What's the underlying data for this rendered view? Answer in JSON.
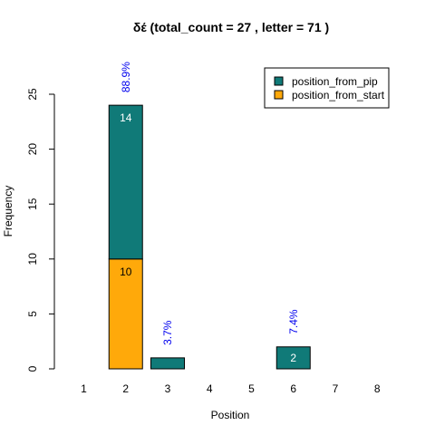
{
  "chart_data": {
    "type": "bar",
    "title": "δέ  (total_count =  27 , letter = 71 )",
    "xlabel": "Position",
    "ylabel": "Frequency",
    "categories": [
      "1",
      "2",
      "3",
      "4",
      "5",
      "6",
      "7",
      "8"
    ],
    "stacked": true,
    "ylim": [
      0,
      25
    ],
    "yticks": [
      0,
      5,
      10,
      15,
      20,
      25
    ],
    "series": [
      {
        "name": "position_from_start",
        "color": "#ffa90a",
        "values": [
          0,
          10,
          0,
          0,
          0,
          0,
          0,
          0
        ]
      },
      {
        "name": "position_from_pip",
        "color": "#107a78",
        "values": [
          0,
          14,
          1,
          0,
          0,
          2,
          0,
          0
        ]
      }
    ],
    "bar_labels": [
      {
        "category": "2",
        "series": "position_from_pip",
        "text": "14"
      },
      {
        "category": "2",
        "series": "position_from_start",
        "text": "10"
      },
      {
        "category": "6",
        "series": "position_from_pip",
        "text": "2"
      }
    ],
    "percent_labels": [
      {
        "category": "2",
        "text": "88.9%"
      },
      {
        "category": "3",
        "text": "3.7%"
      },
      {
        "category": "6",
        "text": "7.4%"
      }
    ],
    "percent_color": "#0000ee",
    "legend": {
      "position": "top-right",
      "items": [
        {
          "label": "position_from_pip",
          "color": "#107a78"
        },
        {
          "label": "position_from_start",
          "color": "#ffa90a"
        }
      ]
    },
    "grid": false
  }
}
